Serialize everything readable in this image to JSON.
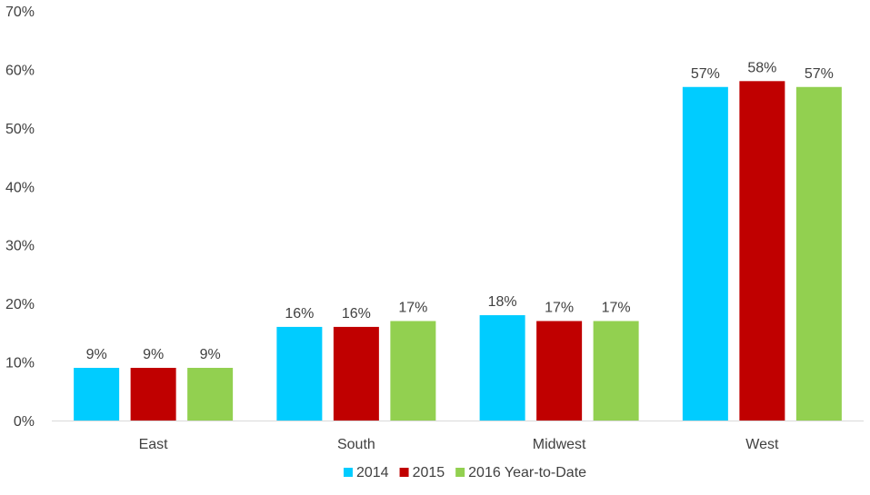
{
  "chart_data": {
    "type": "bar",
    "categories": [
      "East",
      "South",
      "Midwest",
      "West"
    ],
    "series": [
      {
        "name": "2014",
        "values": [
          9,
          16,
          18,
          57
        ],
        "color": "#00CCFF"
      },
      {
        "name": "2015",
        "values": [
          9,
          16,
          17,
          58
        ],
        "color": "#C00000"
      },
      {
        "name": "2016 Year-to-Date",
        "values": [
          9,
          17,
          17,
          57
        ],
        "color": "#92D050"
      }
    ],
    "data_labels": [
      [
        "9%",
        "16%",
        "18%",
        "57%"
      ],
      [
        "9%",
        "16%",
        "17%",
        "58%"
      ],
      [
        "9%",
        "17%",
        "17%",
        "57%"
      ]
    ],
    "y_ticks": [
      "0%",
      "10%",
      "20%",
      "30%",
      "40%",
      "50%",
      "60%",
      "70%"
    ],
    "ylim": [
      0,
      70
    ],
    "y_step": 10,
    "grid": false,
    "legend_position": "bottom-center",
    "title": "",
    "xlabel": "",
    "ylabel": ""
  }
}
